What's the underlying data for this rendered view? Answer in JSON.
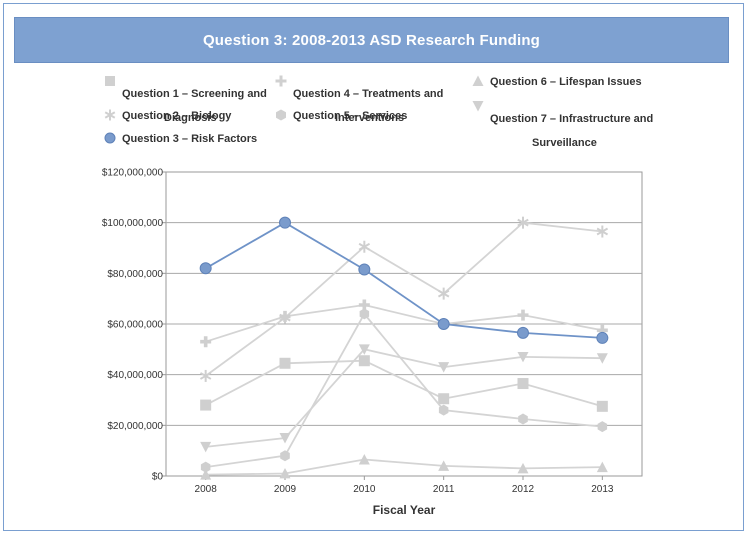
{
  "chart_data": {
    "type": "line",
    "title": "Question 3: 2008-2013 ASD Research Funding",
    "xlabel": "Fiscal Year",
    "ylabel": "",
    "categories": [
      "2008",
      "2009",
      "2010",
      "2011",
      "2012",
      "2013"
    ],
    "ylim": [
      0,
      120000000
    ],
    "yticks": [
      0,
      20000000,
      40000000,
      60000000,
      80000000,
      100000000,
      120000000
    ],
    "ytick_labels": [
      "$0",
      "$20,000,000",
      "$40,000,000",
      "$60,000,000",
      "$80,000,000",
      "$100,000,000",
      "$120,000,000"
    ],
    "grid": true,
    "series": [
      {
        "name": "Question 1 – Screening and Diagnosis",
        "marker": "square",
        "color": "#cfcfcf",
        "values": [
          28000000,
          44500000,
          45500000,
          30500000,
          36500000,
          27500000
        ]
      },
      {
        "name": "Question 2 – Biology",
        "marker": "asterisk",
        "color": "#cfcfcf",
        "values": [
          39500000,
          62500000,
          90500000,
          72000000,
          100000000,
          96500000
        ]
      },
      {
        "name": "Question 3 – Risk Factors",
        "marker": "circle",
        "color": "#7a9bcc",
        "values": [
          82000000,
          100000000,
          81500000,
          60000000,
          56500000,
          54500000
        ]
      },
      {
        "name": "Question 4 – Treatments and Interventions",
        "marker": "plus",
        "color": "#cfcfcf",
        "values": [
          53000000,
          63000000,
          67500000,
          60000000,
          63500000,
          57500000
        ]
      },
      {
        "name": "Question 5 – Services",
        "marker": "hexagon",
        "color": "#cfcfcf",
        "values": [
          3500000,
          8000000,
          64000000,
          26000000,
          22500000,
          19500000
        ]
      },
      {
        "name": "Question 6 – Lifespan Issues",
        "marker": "triangle-up",
        "color": "#cfcfcf",
        "values": [
          500000,
          1000000,
          6500000,
          4000000,
          3000000,
          3500000
        ]
      },
      {
        "name": "Question 7 – Infrastructure and Surveillance",
        "marker": "triangle-down",
        "color": "#cfcfcf",
        "values": [
          11500000,
          15000000,
          50000000,
          43000000,
          47000000,
          46500000
        ]
      }
    ]
  },
  "legend": [
    {
      "key": "q1",
      "marker": "square",
      "color": "#d0d0d0",
      "line1": "Question 1 – Screening and",
      "line2": "Diagnosis"
    },
    {
      "key": "q2",
      "marker": "asterisk",
      "color": "#d0d0d0",
      "line1": "Question 2 – Biology",
      "line2": ""
    },
    {
      "key": "q3",
      "marker": "circle",
      "color": "#7a9bcc",
      "line1": "Question 3 – Risk Factors",
      "line2": ""
    },
    {
      "key": "q4",
      "marker": "plus",
      "color": "#d0d0d0",
      "line1": "Question 4 – Treatments and",
      "line2": "Interventions"
    },
    {
      "key": "q5",
      "marker": "hexagon",
      "color": "#d0d0d0",
      "line1": "Question 5 – Services",
      "line2": ""
    },
    {
      "key": "q6",
      "marker": "triangle-up",
      "color": "#d0d0d0",
      "line1": "Question 6 – Lifespan Issues",
      "line2": ""
    },
    {
      "key": "q7",
      "marker": "triangle-down",
      "color": "#d0d0d0",
      "line1": "Question 7 – Infrastructure and",
      "line2": "Surveillance"
    }
  ]
}
